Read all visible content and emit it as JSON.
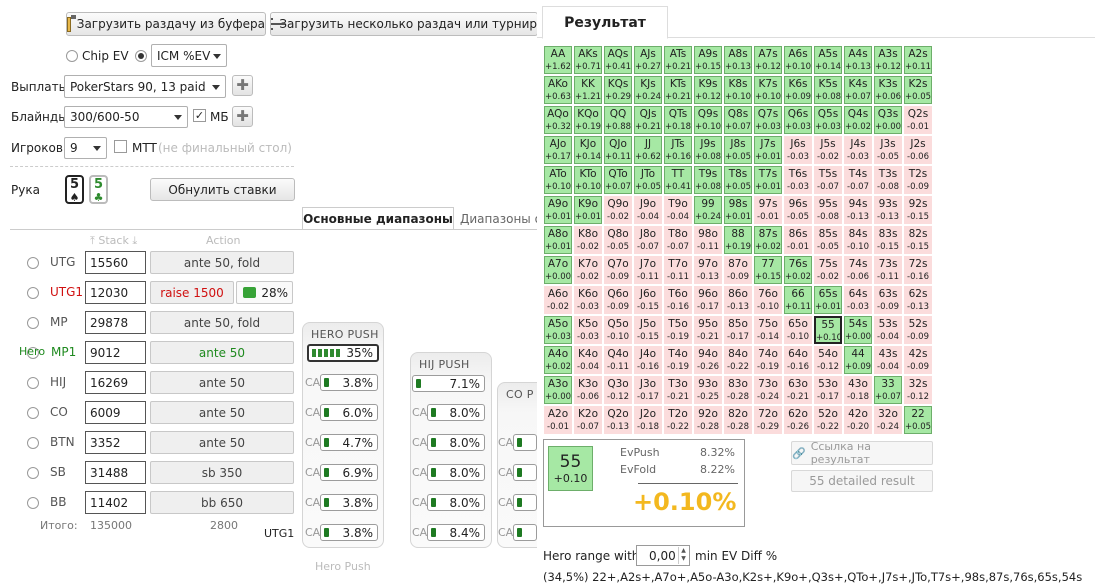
{
  "toolbar": {
    "load_hand": "Загрузить раздачу из буфера",
    "load_many": "Загрузить несколько раздач или турнир"
  },
  "mode": {
    "chip_ev": "Chip EV",
    "icm_ev": "ICM %EV"
  },
  "settings": {
    "payouts_label": "Выплаты",
    "payouts_value": "PokerStars 90, 13 paid",
    "blinds_label": "Блайнды",
    "blinds_value": "300/600-50",
    "bb_ante_label": "МБ",
    "players_label": "Игроков",
    "players_value": "9",
    "mtt_label": "MTT",
    "mtt_note": "(не финальный стол)"
  },
  "hand": {
    "label": "Рука",
    "card1": "5",
    "card2": "5",
    "reset": "Обнулить ставки"
  },
  "tabs": {
    "main_ranges": "Основные диапазоны",
    "other_ranges": "Диапазоны о"
  },
  "table_headers": {
    "stack": "Stack",
    "action": "Action"
  },
  "players": [
    {
      "pos": "UTG",
      "stack": "15560",
      "action": "ante 50, fold"
    },
    {
      "pos": "UTG1",
      "stack": "12030",
      "action": "raise 1500",
      "pct": "28%"
    },
    {
      "pos": "MP",
      "stack": "29878",
      "action": "ante 50, fold"
    },
    {
      "pos": "MP1",
      "hero": "Hero",
      "stack": "9012",
      "action": "ante 50"
    },
    {
      "pos": "HIJ",
      "stack": "16269",
      "action": "ante 50"
    },
    {
      "pos": "CO",
      "stack": "6009",
      "action": "ante 50"
    },
    {
      "pos": "BTN",
      "stack": "3352",
      "action": "ante 50"
    },
    {
      "pos": "SB",
      "stack": "31488",
      "action": "sb 350"
    },
    {
      "pos": "BB",
      "stack": "11402",
      "action": "bb 650"
    }
  ],
  "totals": {
    "label": "Итого:",
    "stack": "135000",
    "action": "2800"
  },
  "push_panels": {
    "hero_title": "HERO PUSH",
    "hero_pct": "35%",
    "hero_vals": [
      "3.8%",
      "6.0%",
      "4.7%",
      "6.9%",
      "3.8%",
      "3.8%"
    ],
    "hij_title": "HIJ PUSH",
    "hij_pct": "7.1%",
    "hij_vals": [
      "8.0%",
      "8.0%",
      "8.0%",
      "8.0%",
      "8.4%"
    ],
    "co_title": "CO P",
    "ca_label": "CA",
    "utg1_label": "UTG1",
    "footer": "Hero Push"
  },
  "result": {
    "tab": "Результат",
    "hand": "55",
    "hand_ev": "+0.10",
    "evpush_label": "EvPush",
    "evpush_value": "8.32%",
    "evfold_label": "EvFold",
    "evfold_value": "8.22%",
    "diff": "+0.10%",
    "link_button": "Ссылка на результат",
    "detailed_button": "55 detailed result",
    "hero_range_label": "Hero range with",
    "min_ev_value": "0,00",
    "min_ev_label": "min EV Diff %",
    "range_text": "(34,5%) 22+,A2s+,A7o+,A5o-A3o,K2s+,K9o+,Q3s+,QTo+,J7s+,JTo,T7s+,98s,87s,76s,65s,54s"
  },
  "colors": {
    "in_range": "#a6e8a4",
    "out_range": "#fbdcdc",
    "accent": "#f3b81f",
    "red": "#d01010",
    "green": "#1f8a1f"
  },
  "matrix": [
    [
      [
        "AA",
        "+1.62",
        1
      ],
      [
        "AKs",
        "+0.71",
        1
      ],
      [
        "AQs",
        "+0.41",
        1
      ],
      [
        "AJs",
        "+0.27",
        1
      ],
      [
        "ATs",
        "+0.21",
        1
      ],
      [
        "A9s",
        "+0.15",
        1
      ],
      [
        "A8s",
        "+0.13",
        1
      ],
      [
        "A7s",
        "+0.12",
        1
      ],
      [
        "A6s",
        "+0.10",
        1
      ],
      [
        "A5s",
        "+0.14",
        1
      ],
      [
        "A4s",
        "+0.13",
        1
      ],
      [
        "A3s",
        "+0.12",
        1
      ],
      [
        "A2s",
        "+0.11",
        1
      ]
    ],
    [
      [
        "AKo",
        "+0.63",
        1
      ],
      [
        "KK",
        "+1.21",
        1
      ],
      [
        "KQs",
        "+0.29",
        1
      ],
      [
        "KJs",
        "+0.24",
        1
      ],
      [
        "KTs",
        "+0.21",
        1
      ],
      [
        "K9s",
        "+0.12",
        1
      ],
      [
        "K8s",
        "+0.10",
        1
      ],
      [
        "K7s",
        "+0.10",
        1
      ],
      [
        "K6s",
        "+0.09",
        1
      ],
      [
        "K5s",
        "+0.08",
        1
      ],
      [
        "K4s",
        "+0.07",
        1
      ],
      [
        "K3s",
        "+0.06",
        1
      ],
      [
        "K2s",
        "+0.05",
        1
      ]
    ],
    [
      [
        "AQo",
        "+0.32",
        1
      ],
      [
        "KQo",
        "+0.19",
        1
      ],
      [
        "QQ",
        "+0.88",
        1
      ],
      [
        "QJs",
        "+0.21",
        1
      ],
      [
        "QTs",
        "+0.18",
        1
      ],
      [
        "Q9s",
        "+0.10",
        1
      ],
      [
        "Q8s",
        "+0.07",
        1
      ],
      [
        "Q7s",
        "+0.03",
        1
      ],
      [
        "Q6s",
        "+0.03",
        1
      ],
      [
        "Q5s",
        "+0.03",
        1
      ],
      [
        "Q4s",
        "+0.02",
        1
      ],
      [
        "Q3s",
        "+0.00",
        1
      ],
      [
        "Q2s",
        "-0.01",
        0
      ]
    ],
    [
      [
        "AJo",
        "+0.17",
        1
      ],
      [
        "KJo",
        "+0.14",
        1
      ],
      [
        "QJo",
        "+0.11",
        1
      ],
      [
        "JJ",
        "+0.62",
        1
      ],
      [
        "JTs",
        "+0.16",
        1
      ],
      [
        "J9s",
        "+0.08",
        1
      ],
      [
        "J8s",
        "+0.05",
        1
      ],
      [
        "J7s",
        "+0.01",
        1
      ],
      [
        "J6s",
        "-0.03",
        0
      ],
      [
        "J5s",
        "-0.02",
        0
      ],
      [
        "J4s",
        "-0.03",
        0
      ],
      [
        "J3s",
        "-0.05",
        0
      ],
      [
        "J2s",
        "-0.06",
        0
      ]
    ],
    [
      [
        "ATo",
        "+0.10",
        1
      ],
      [
        "KTo",
        "+0.10",
        1
      ],
      [
        "QTo",
        "+0.07",
        1
      ],
      [
        "JTo",
        "+0.05",
        1
      ],
      [
        "TT",
        "+0.41",
        1
      ],
      [
        "T9s",
        "+0.08",
        1
      ],
      [
        "T8s",
        "+0.05",
        1
      ],
      [
        "T7s",
        "+0.01",
        1
      ],
      [
        "T6s",
        "-0.03",
        0
      ],
      [
        "T5s",
        "-0.07",
        0
      ],
      [
        "T4s",
        "-0.07",
        0
      ],
      [
        "T3s",
        "-0.08",
        0
      ],
      [
        "T2s",
        "-0.09",
        0
      ]
    ],
    [
      [
        "A9o",
        "+0.01",
        1
      ],
      [
        "K9o",
        "+0.01",
        1
      ],
      [
        "Q9o",
        "-0.02",
        0
      ],
      [
        "J9o",
        "-0.04",
        0
      ],
      [
        "T9o",
        "-0.04",
        0
      ],
      [
        "99",
        "+0.24",
        1
      ],
      [
        "98s",
        "+0.01",
        1
      ],
      [
        "97s",
        "-0.01",
        0
      ],
      [
        "96s",
        "-0.05",
        0
      ],
      [
        "95s",
        "-0.08",
        0
      ],
      [
        "94s",
        "-0.13",
        0
      ],
      [
        "93s",
        "-0.13",
        0
      ],
      [
        "92s",
        "-0.15",
        0
      ]
    ],
    [
      [
        "A8o",
        "+0.01",
        1
      ],
      [
        "K8o",
        "-0.02",
        0
      ],
      [
        "Q8o",
        "-0.05",
        0
      ],
      [
        "J8o",
        "-0.07",
        0
      ],
      [
        "T8o",
        "-0.07",
        0
      ],
      [
        "98o",
        "-0.11",
        0
      ],
      [
        "88",
        "+0.19",
        1
      ],
      [
        "87s",
        "+0.02",
        1
      ],
      [
        "86s",
        "-0.01",
        0
      ],
      [
        "85s",
        "-0.05",
        0
      ],
      [
        "84s",
        "-0.10",
        0
      ],
      [
        "83s",
        "-0.15",
        0
      ],
      [
        "82s",
        "-0.15",
        0
      ]
    ],
    [
      [
        "A7o",
        "+0.00",
        1
      ],
      [
        "K7o",
        "-0.02",
        0
      ],
      [
        "Q7o",
        "-0.09",
        0
      ],
      [
        "J7o",
        "-0.11",
        0
      ],
      [
        "T7o",
        "-0.11",
        0
      ],
      [
        "97o",
        "-0.13",
        0
      ],
      [
        "87o",
        "-0.09",
        0
      ],
      [
        "77",
        "+0.15",
        1
      ],
      [
        "76s",
        "+0.02",
        1
      ],
      [
        "75s",
        "-0.02",
        0
      ],
      [
        "74s",
        "-0.06",
        0
      ],
      [
        "73s",
        "-0.11",
        0
      ],
      [
        "72s",
        "-0.16",
        0
      ]
    ],
    [
      [
        "A6o",
        "-0.02",
        0
      ],
      [
        "K6o",
        "-0.03",
        0
      ],
      [
        "Q6o",
        "-0.09",
        0
      ],
      [
        "J6o",
        "-0.15",
        0
      ],
      [
        "T6o",
        "-0.16",
        0
      ],
      [
        "96o",
        "-0.17",
        0
      ],
      [
        "86o",
        "-0.13",
        0
      ],
      [
        "76o",
        "-0.10",
        0
      ],
      [
        "66",
        "+0.11",
        1
      ],
      [
        "65s",
        "+0.01",
        1
      ],
      [
        "64s",
        "-0.03",
        0
      ],
      [
        "63s",
        "-0.09",
        0
      ],
      [
        "62s",
        "-0.13",
        0
      ]
    ],
    [
      [
        "A5o",
        "+0.03",
        1
      ],
      [
        "K5o",
        "-0.03",
        0
      ],
      [
        "Q5o",
        "-0.10",
        0
      ],
      [
        "J5o",
        "-0.15",
        0
      ],
      [
        "T5o",
        "-0.19",
        0
      ],
      [
        "95o",
        "-0.21",
        0
      ],
      [
        "85o",
        "-0.17",
        0
      ],
      [
        "75o",
        "-0.14",
        0
      ],
      [
        "65o",
        "-0.10",
        0
      ],
      [
        "55",
        "+0.10",
        2
      ],
      [
        "54s",
        "+0.00",
        1
      ],
      [
        "53s",
        "-0.04",
        0
      ],
      [
        "52s",
        "-0.09",
        0
      ]
    ],
    [
      [
        "A4o",
        "+0.02",
        1
      ],
      [
        "K4o",
        "-0.04",
        0
      ],
      [
        "Q4o",
        "-0.11",
        0
      ],
      [
        "J4o",
        "-0.16",
        0
      ],
      [
        "T4o",
        "-0.19",
        0
      ],
      [
        "94o",
        "-0.26",
        0
      ],
      [
        "84o",
        "-0.22",
        0
      ],
      [
        "74o",
        "-0.19",
        0
      ],
      [
        "64o",
        "-0.16",
        0
      ],
      [
        "54o",
        "-0.12",
        0
      ],
      [
        "44",
        "+0.09",
        1
      ],
      [
        "43s",
        "-0.04",
        0
      ],
      [
        "42s",
        "-0.09",
        0
      ]
    ],
    [
      [
        "A3o",
        "+0.00",
        1
      ],
      [
        "K3o",
        "-0.06",
        0
      ],
      [
        "Q3o",
        "-0.12",
        0
      ],
      [
        "J3o",
        "-0.17",
        0
      ],
      [
        "T3o",
        "-0.21",
        0
      ],
      [
        "93o",
        "-0.25",
        0
      ],
      [
        "83o",
        "-0.28",
        0
      ],
      [
        "73o",
        "-0.24",
        0
      ],
      [
        "63o",
        "-0.21",
        0
      ],
      [
        "53o",
        "-0.17",
        0
      ],
      [
        "43o",
        "-0.18",
        0
      ],
      [
        "33",
        "+0.07",
        1
      ],
      [
        "32s",
        "-0.12",
        0
      ]
    ],
    [
      [
        "A2o",
        "-0.01",
        0
      ],
      [
        "K2o",
        "-0.07",
        0
      ],
      [
        "Q2o",
        "-0.13",
        0
      ],
      [
        "J2o",
        "-0.18",
        0
      ],
      [
        "T2o",
        "-0.22",
        0
      ],
      [
        "92o",
        "-0.28",
        0
      ],
      [
        "82o",
        "-0.28",
        0
      ],
      [
        "72o",
        "-0.29",
        0
      ],
      [
        "62o",
        "-0.26",
        0
      ],
      [
        "52o",
        "-0.22",
        0
      ],
      [
        "42o",
        "-0.20",
        0
      ],
      [
        "32o",
        "-0.24",
        0
      ],
      [
        "22",
        "+0.05",
        1
      ]
    ]
  ]
}
